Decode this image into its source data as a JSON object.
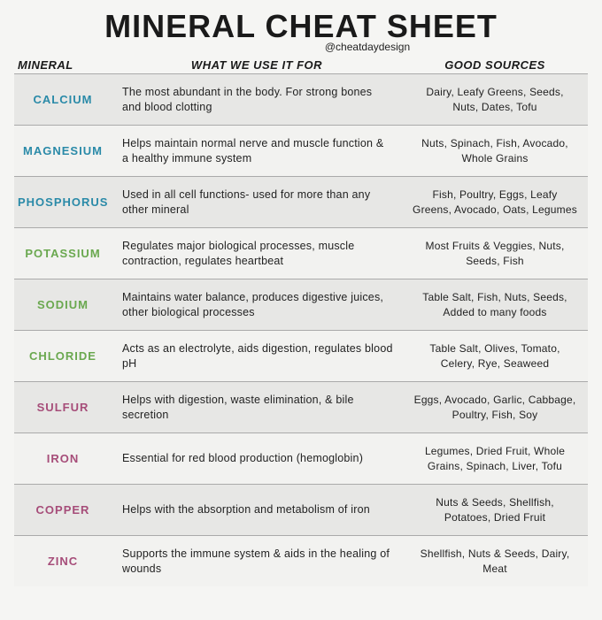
{
  "title": "MINERAL CHEAT SHEET",
  "handle": "@cheatdaydesign",
  "headers": {
    "mineral": "MINERAL",
    "use": "WHAT WE USE IT FOR",
    "sources": "GOOD SOURCES"
  },
  "colors": {
    "background": "#f5f5f3",
    "row_odd": "#e7e7e5",
    "row_even": "#f2f2f0",
    "text": "#222222",
    "border": "#aaaaaa",
    "calcium": "#2a8aa8",
    "magnesium": "#2a8aa8",
    "phosphorus": "#2a8aa8",
    "potassium": "#6aa84f",
    "sodium": "#6aa84f",
    "chloride": "#6aa84f",
    "sulfur": "#a64d79",
    "iron": "#a64d79",
    "copper": "#a64d79",
    "zinc": "#a64d79"
  },
  "rows": [
    {
      "name": "CALCIUM",
      "color": "#2a8aa8",
      "use": "The most abundant in the body. For strong bones and blood clotting",
      "sources": "Dairy, Leafy Greens, Seeds, Nuts, Dates, Tofu"
    },
    {
      "name": "MAGNESIUM",
      "color": "#2a8aa8",
      "use": "Helps maintain normal nerve and muscle function & a healthy immune system",
      "sources": "Nuts, Spinach, Fish, Avocado, Whole Grains"
    },
    {
      "name": "PHOSPHORUS",
      "color": "#2a8aa8",
      "use": "Used in all cell functions- used for more than any other mineral",
      "sources": "Fish, Poultry, Eggs, Leafy Greens, Avocado, Oats, Legumes"
    },
    {
      "name": "POTASSIUM",
      "color": "#6aa84f",
      "use": "Regulates major biological processes, muscle contraction, regulates heartbeat",
      "sources": "Most Fruits & Veggies, Nuts, Seeds, Fish"
    },
    {
      "name": "SODIUM",
      "color": "#6aa84f",
      "use": "Maintains water balance, produces digestive juices, other biological processes",
      "sources": "Table Salt, Fish, Nuts, Seeds, Added to many foods"
    },
    {
      "name": "CHLORIDE",
      "color": "#6aa84f",
      "use": "Acts as an electrolyte, aids digestion, regulates blood pH",
      "sources": "Table Salt, Olives, Tomato, Celery, Rye, Seaweed"
    },
    {
      "name": "SULFUR",
      "color": "#a64d79",
      "use": "Helps with digestion, waste elimination, & bile secretion",
      "sources": "Eggs, Avocado, Garlic, Cabbage, Poultry, Fish, Soy"
    },
    {
      "name": "IRON",
      "color": "#a64d79",
      "use": "Essential for red blood production (hemoglobin)",
      "sources": "Legumes, Dried Fruit, Whole Grains, Spinach, Liver, Tofu"
    },
    {
      "name": "COPPER",
      "color": "#a64d79",
      "use": "Helps with the absorption and metabolism of iron",
      "sources": "Nuts & Seeds, Shellfish, Potatoes, Dried Fruit"
    },
    {
      "name": "ZINC",
      "color": "#a64d79",
      "use": "Supports the immune system & aids in the healing of wounds",
      "sources": "Shellfish, Nuts & Seeds, Dairy, Meat"
    }
  ]
}
